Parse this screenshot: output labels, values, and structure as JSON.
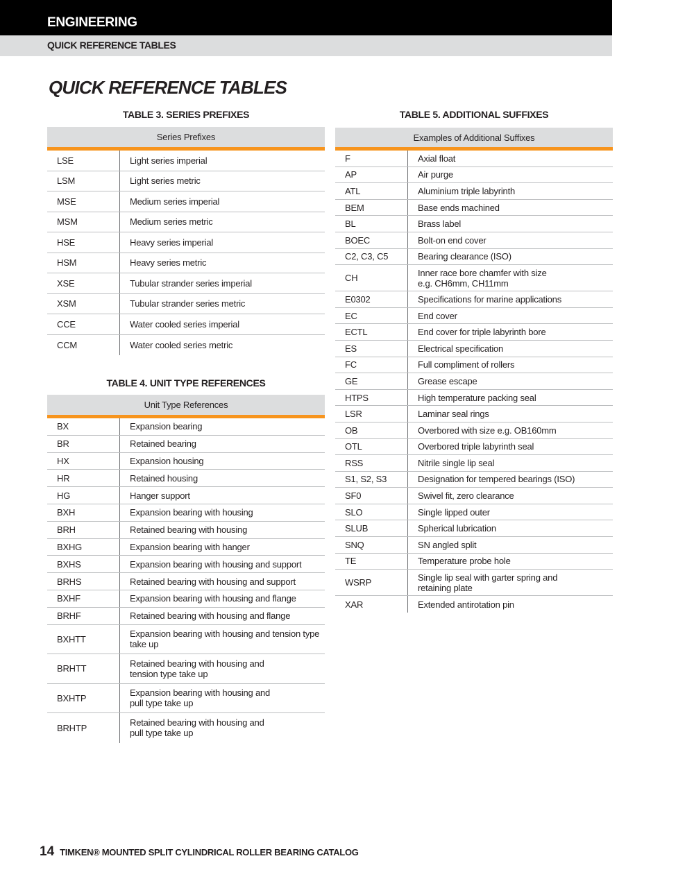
{
  "header": {
    "section": "ENGINEERING",
    "subsection": "QUICK REFERENCE TABLES"
  },
  "page_title": "QUICK REFERENCE TABLES",
  "table3": {
    "caption": "TABLE 3. SERIES PREFIXES",
    "header": "Series Prefixes",
    "rows": [
      [
        "LSE",
        "Light series imperial"
      ],
      [
        "LSM",
        "Light series metric"
      ],
      [
        "MSE",
        "Medium series imperial"
      ],
      [
        "MSM",
        "Medium series metric"
      ],
      [
        "HSE",
        "Heavy series imperial"
      ],
      [
        "HSM",
        "Heavy series metric"
      ],
      [
        "XSE",
        "Tubular strander series imperial"
      ],
      [
        "XSM",
        "Tubular strander series metric"
      ],
      [
        "CCE",
        "Water cooled series imperial"
      ],
      [
        "CCM",
        "Water cooled series metric"
      ]
    ]
  },
  "table4": {
    "caption": "TABLE 4. UNIT TYPE REFERENCES",
    "header": "Unit Type References",
    "rows": [
      [
        "BX",
        "Expansion bearing"
      ],
      [
        "BR",
        "Retained bearing"
      ],
      [
        "HX",
        "Expansion housing"
      ],
      [
        "HR",
        "Retained housing"
      ],
      [
        "HG",
        "Hanger support"
      ],
      [
        "BXH",
        "Expansion bearing with housing"
      ],
      [
        "BRH",
        "Retained bearing with housing"
      ],
      [
        "BXHG",
        "Expansion bearing with hanger"
      ],
      [
        "BXHS",
        "Expansion bearing with housing and support"
      ],
      [
        "BRHS",
        "Retained bearing with housing and support"
      ],
      [
        "BXHF",
        "Expansion bearing with housing and flange"
      ],
      [
        "BRHF",
        "Retained bearing with housing and flange"
      ],
      [
        "BXHTT",
        "Expansion bearing with housing and tension type\ntake up"
      ],
      [
        "BRHTT",
        "Retained bearing with housing and\ntension type take up"
      ],
      [
        "BXHTP",
        "Expansion bearing with housing and\npull type take up"
      ],
      [
        "BRHTP",
        "Retained bearing with housing and\npull type take up"
      ]
    ]
  },
  "table5": {
    "caption": "TABLE 5. ADDITIONAL SUFFIXES",
    "header": "Examples of Additional Suffixes",
    "rows": [
      [
        "F",
        "Axial float"
      ],
      [
        "AP",
        "Air purge"
      ],
      [
        "ATL",
        "Aluminium triple labyrinth"
      ],
      [
        "BEM",
        "Base ends machined"
      ],
      [
        "BL",
        "Brass label"
      ],
      [
        "BOEC",
        "Bolt-on end cover"
      ],
      [
        "C2, C3, C5",
        "Bearing clearance (ISO)"
      ],
      [
        "CH",
        "Inner race bore chamfer with size\ne.g. CH6mm, CH11mm"
      ],
      [
        "E0302",
        "Specifications for marine applications"
      ],
      [
        "EC",
        "End cover"
      ],
      [
        "ECTL",
        "End cover for triple labyrinth bore"
      ],
      [
        "ES",
        "Electrical specification"
      ],
      [
        "FC",
        "Full compliment of rollers"
      ],
      [
        "GE",
        "Grease escape"
      ],
      [
        "HTPS",
        "High temperature packing seal"
      ],
      [
        "LSR",
        "Laminar seal rings"
      ],
      [
        "OB",
        "Overbored with size e.g. OB160mm"
      ],
      [
        "OTL",
        "Overbored triple labyrinth seal"
      ],
      [
        "RSS",
        "Nitrile single lip seal"
      ],
      [
        "S1, S2, S3",
        "Designation for tempered bearings (ISO)"
      ],
      [
        "SF0",
        "Swivel fit, zero clearance"
      ],
      [
        "SLO",
        "Single lipped outer"
      ],
      [
        "SLUB",
        "Spherical lubrication"
      ],
      [
        "SNQ",
        "SN angled split"
      ],
      [
        "TE",
        "Temperature probe hole"
      ],
      [
        "WSRP",
        "Single lip seal with garter spring and\nretaining plate"
      ],
      [
        "XAR",
        "Extended antirotation pin"
      ]
    ]
  },
  "footer": {
    "page_number": "14",
    "catalog_title": "TIMKEN® MOUNTED SPLIT CYLINDRICAL ROLLER BEARING CATALOG"
  },
  "colors": {
    "accent": "#f7941d",
    "header_gray": "#dcddde",
    "top_bar": "#000000"
  }
}
